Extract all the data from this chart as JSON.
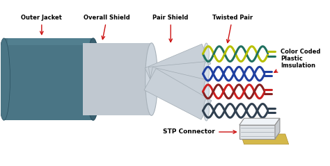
{
  "bg_color": "#ffffff",
  "labels": {
    "outer_jacket": "Outer Jacket",
    "overall_shield": "Overall Shield",
    "pair_shield": "Pair Shield",
    "twisted_pair": "Twisted Pair",
    "color_coded": "Color Coded\nPlastic\nImsulation",
    "stp_connector": "STP Connector"
  },
  "outer_jacket_color": "#4a7585",
  "outer_jacket_dark": "#3a6070",
  "shield_color": "#c0c8d0",
  "shield_dark": "#a8b2ba",
  "tube_color": "#c8d0d8",
  "tube_edge": "#a0aab2",
  "pair1_color1": "#b8c000",
  "pair1_color2": "#207060",
  "pair2_color1": "#2040a0",
  "pair2_color2": "#2040a0",
  "pair3_color1": "#cc2020",
  "pair3_color2": "#882020",
  "pair4_color1": "#304050",
  "pair4_color2": "#304050",
  "arrow_color": "#cc1010",
  "text_color": "#000000",
  "connector_white": "#e0e4e8",
  "connector_yellow": "#d4b84a"
}
